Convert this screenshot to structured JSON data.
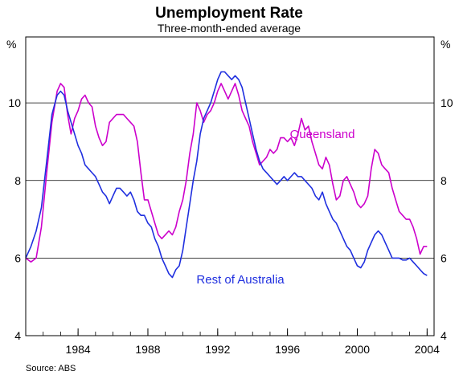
{
  "chart_data": {
    "type": "line",
    "title": "Unemployment Rate",
    "subtitle": "Three-month-ended average",
    "y_unit_left": "%",
    "y_unit_right": "%",
    "ylim": [
      4,
      11.7
    ],
    "yticks": [
      4,
      6,
      8,
      10
    ],
    "xlim": [
      1981.0,
      2004.4
    ],
    "xticks": [
      1984,
      1988,
      1992,
      1996,
      2000,
      2004
    ],
    "grid": "horizontal",
    "source": "Source:  ABS",
    "series": [
      {
        "name": "Queensland",
        "color": "#cc00cc",
        "label_x": 1998.0,
        "label_y": 9.2,
        "points": [
          [
            1981.0,
            6.0
          ],
          [
            1981.3,
            5.9
          ],
          [
            1981.6,
            6.0
          ],
          [
            1981.9,
            6.8
          ],
          [
            1982.2,
            8.2
          ],
          [
            1982.5,
            9.5
          ],
          [
            1982.8,
            10.3
          ],
          [
            1983.0,
            10.5
          ],
          [
            1983.2,
            10.4
          ],
          [
            1983.4,
            9.7
          ],
          [
            1983.6,
            9.2
          ],
          [
            1983.8,
            9.6
          ],
          [
            1984.0,
            9.8
          ],
          [
            1984.2,
            10.1
          ],
          [
            1984.4,
            10.2
          ],
          [
            1984.6,
            10.0
          ],
          [
            1984.8,
            9.9
          ],
          [
            1985.0,
            9.4
          ],
          [
            1985.2,
            9.1
          ],
          [
            1985.4,
            8.9
          ],
          [
            1985.6,
            9.0
          ],
          [
            1985.8,
            9.5
          ],
          [
            1986.0,
            9.6
          ],
          [
            1986.2,
            9.7
          ],
          [
            1986.4,
            9.7
          ],
          [
            1986.6,
            9.7
          ],
          [
            1986.8,
            9.6
          ],
          [
            1987.0,
            9.5
          ],
          [
            1987.2,
            9.4
          ],
          [
            1987.4,
            9.0
          ],
          [
            1987.6,
            8.2
          ],
          [
            1987.8,
            7.5
          ],
          [
            1988.0,
            7.5
          ],
          [
            1988.2,
            7.2
          ],
          [
            1988.4,
            6.9
          ],
          [
            1988.6,
            6.6
          ],
          [
            1988.8,
            6.5
          ],
          [
            1989.0,
            6.6
          ],
          [
            1989.2,
            6.7
          ],
          [
            1989.4,
            6.6
          ],
          [
            1989.6,
            6.8
          ],
          [
            1989.8,
            7.2
          ],
          [
            1990.0,
            7.5
          ],
          [
            1990.2,
            8.0
          ],
          [
            1990.4,
            8.7
          ],
          [
            1990.6,
            9.2
          ],
          [
            1990.8,
            10.0
          ],
          [
            1991.0,
            9.8
          ],
          [
            1991.2,
            9.5
          ],
          [
            1991.4,
            9.7
          ],
          [
            1991.6,
            9.8
          ],
          [
            1991.8,
            10.0
          ],
          [
            1992.0,
            10.3
          ],
          [
            1992.2,
            10.5
          ],
          [
            1992.4,
            10.3
          ],
          [
            1992.6,
            10.1
          ],
          [
            1992.8,
            10.3
          ],
          [
            1993.0,
            10.5
          ],
          [
            1993.2,
            10.2
          ],
          [
            1993.4,
            9.8
          ],
          [
            1993.6,
            9.6
          ],
          [
            1993.8,
            9.4
          ],
          [
            1994.0,
            9.0
          ],
          [
            1994.2,
            8.7
          ],
          [
            1994.4,
            8.4
          ],
          [
            1994.6,
            8.5
          ],
          [
            1994.8,
            8.6
          ],
          [
            1995.0,
            8.8
          ],
          [
            1995.2,
            8.7
          ],
          [
            1995.4,
            8.8
          ],
          [
            1995.6,
            9.1
          ],
          [
            1995.8,
            9.1
          ],
          [
            1996.0,
            9.0
          ],
          [
            1996.2,
            9.1
          ],
          [
            1996.4,
            8.9
          ],
          [
            1996.6,
            9.2
          ],
          [
            1996.8,
            9.6
          ],
          [
            1997.0,
            9.3
          ],
          [
            1997.2,
            9.4
          ],
          [
            1997.4,
            9.0
          ],
          [
            1997.6,
            8.7
          ],
          [
            1997.8,
            8.4
          ],
          [
            1998.0,
            8.3
          ],
          [
            1998.2,
            8.6
          ],
          [
            1998.4,
            8.4
          ],
          [
            1998.6,
            7.9
          ],
          [
            1998.8,
            7.5
          ],
          [
            1999.0,
            7.6
          ],
          [
            1999.2,
            8.0
          ],
          [
            1999.4,
            8.1
          ],
          [
            1999.6,
            7.9
          ],
          [
            1999.8,
            7.7
          ],
          [
            2000.0,
            7.4
          ],
          [
            2000.2,
            7.3
          ],
          [
            2000.4,
            7.4
          ],
          [
            2000.6,
            7.6
          ],
          [
            2000.8,
            8.3
          ],
          [
            2001.0,
            8.8
          ],
          [
            2001.2,
            8.7
          ],
          [
            2001.4,
            8.4
          ],
          [
            2001.6,
            8.3
          ],
          [
            2001.8,
            8.2
          ],
          [
            2002.0,
            7.8
          ],
          [
            2002.2,
            7.5
          ],
          [
            2002.4,
            7.2
          ],
          [
            2002.6,
            7.1
          ],
          [
            2002.8,
            7.0
          ],
          [
            2003.0,
            7.0
          ],
          [
            2003.2,
            6.8
          ],
          [
            2003.4,
            6.5
          ],
          [
            2003.6,
            6.1
          ],
          [
            2003.8,
            6.3
          ],
          [
            2004.0,
            6.3
          ]
        ]
      },
      {
        "name": "Rest of Australia",
        "color": "#1f2fdf",
        "label_x": 1993.3,
        "label_y": 5.45,
        "points": [
          [
            1981.0,
            6.0
          ],
          [
            1981.3,
            6.3
          ],
          [
            1981.6,
            6.7
          ],
          [
            1981.9,
            7.3
          ],
          [
            1982.2,
            8.5
          ],
          [
            1982.5,
            9.7
          ],
          [
            1982.8,
            10.2
          ],
          [
            1983.0,
            10.3
          ],
          [
            1983.2,
            10.2
          ],
          [
            1983.4,
            9.8
          ],
          [
            1983.6,
            9.5
          ],
          [
            1983.8,
            9.2
          ],
          [
            1984.0,
            8.9
          ],
          [
            1984.2,
            8.7
          ],
          [
            1984.4,
            8.4
          ],
          [
            1984.6,
            8.3
          ],
          [
            1984.8,
            8.2
          ],
          [
            1985.0,
            8.1
          ],
          [
            1985.2,
            7.9
          ],
          [
            1985.4,
            7.7
          ],
          [
            1985.6,
            7.6
          ],
          [
            1985.8,
            7.4
          ],
          [
            1986.0,
            7.6
          ],
          [
            1986.2,
            7.8
          ],
          [
            1986.4,
            7.8
          ],
          [
            1986.6,
            7.7
          ],
          [
            1986.8,
            7.6
          ],
          [
            1987.0,
            7.7
          ],
          [
            1987.2,
            7.5
          ],
          [
            1987.4,
            7.2
          ],
          [
            1987.6,
            7.1
          ],
          [
            1987.8,
            7.1
          ],
          [
            1988.0,
            6.9
          ],
          [
            1988.2,
            6.8
          ],
          [
            1988.4,
            6.5
          ],
          [
            1988.6,
            6.3
          ],
          [
            1988.8,
            6.0
          ],
          [
            1989.0,
            5.8
          ],
          [
            1989.2,
            5.6
          ],
          [
            1989.4,
            5.5
          ],
          [
            1989.6,
            5.7
          ],
          [
            1989.8,
            5.8
          ],
          [
            1990.0,
            6.2
          ],
          [
            1990.2,
            6.8
          ],
          [
            1990.4,
            7.4
          ],
          [
            1990.6,
            8.0
          ],
          [
            1990.8,
            8.5
          ],
          [
            1991.0,
            9.2
          ],
          [
            1991.2,
            9.6
          ],
          [
            1991.4,
            9.8
          ],
          [
            1991.6,
            10.0
          ],
          [
            1991.8,
            10.3
          ],
          [
            1992.0,
            10.6
          ],
          [
            1992.2,
            10.8
          ],
          [
            1992.4,
            10.8
          ],
          [
            1992.6,
            10.7
          ],
          [
            1992.8,
            10.6
          ],
          [
            1993.0,
            10.7
          ],
          [
            1993.2,
            10.6
          ],
          [
            1993.4,
            10.4
          ],
          [
            1993.6,
            10.0
          ],
          [
            1993.8,
            9.6
          ],
          [
            1994.0,
            9.2
          ],
          [
            1994.2,
            8.8
          ],
          [
            1994.4,
            8.5
          ],
          [
            1994.6,
            8.3
          ],
          [
            1994.8,
            8.2
          ],
          [
            1995.0,
            8.1
          ],
          [
            1995.2,
            8.0
          ],
          [
            1995.4,
            7.9
          ],
          [
            1995.6,
            8.0
          ],
          [
            1995.8,
            8.1
          ],
          [
            1996.0,
            8.0
          ],
          [
            1996.2,
            8.1
          ],
          [
            1996.4,
            8.2
          ],
          [
            1996.6,
            8.1
          ],
          [
            1996.8,
            8.1
          ],
          [
            1997.0,
            8.0
          ],
          [
            1997.2,
            7.9
          ],
          [
            1997.4,
            7.8
          ],
          [
            1997.6,
            7.6
          ],
          [
            1997.8,
            7.5
          ],
          [
            1998.0,
            7.7
          ],
          [
            1998.2,
            7.4
          ],
          [
            1998.4,
            7.2
          ],
          [
            1998.6,
            7.0
          ],
          [
            1998.8,
            6.9
          ],
          [
            1999.0,
            6.7
          ],
          [
            1999.2,
            6.5
          ],
          [
            1999.4,
            6.3
          ],
          [
            1999.6,
            6.2
          ],
          [
            1999.8,
            6.0
          ],
          [
            2000.0,
            5.8
          ],
          [
            2000.2,
            5.75
          ],
          [
            2000.4,
            5.9
          ],
          [
            2000.6,
            6.2
          ],
          [
            2000.8,
            6.4
          ],
          [
            2001.0,
            6.6
          ],
          [
            2001.2,
            6.7
          ],
          [
            2001.4,
            6.6
          ],
          [
            2001.6,
            6.4
          ],
          [
            2001.8,
            6.2
          ],
          [
            2002.0,
            6.0
          ],
          [
            2002.2,
            6.0
          ],
          [
            2002.4,
            6.0
          ],
          [
            2002.6,
            5.95
          ],
          [
            2002.8,
            5.95
          ],
          [
            2003.0,
            6.0
          ],
          [
            2003.2,
            5.9
          ],
          [
            2003.4,
            5.8
          ],
          [
            2003.6,
            5.7
          ],
          [
            2003.8,
            5.6
          ],
          [
            2004.0,
            5.55
          ]
        ]
      }
    ]
  }
}
